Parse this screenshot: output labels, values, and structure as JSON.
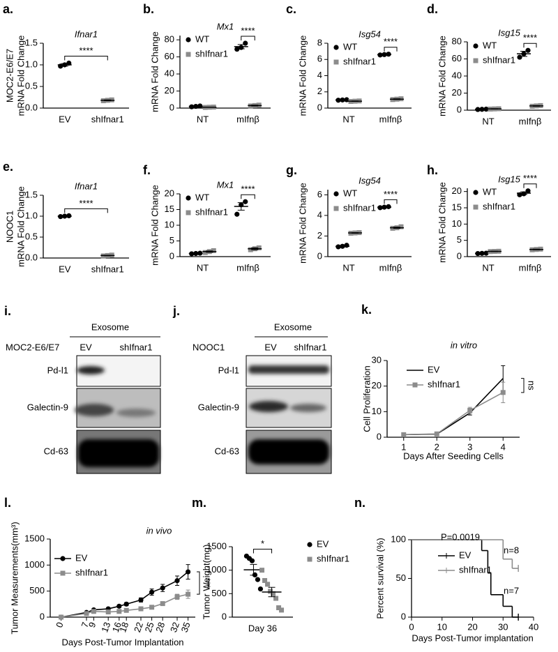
{
  "chart_data": [
    {
      "type": "dot",
      "panel_label": "a.",
      "title": "Ifnar1",
      "ylabel": [
        "MOC2-E6/E7",
        "mRNA Fold Change"
      ],
      "categories": [
        "EV",
        "shIfnar1"
      ],
      "colors": [
        "#000000",
        "#8c8c8c"
      ],
      "markers": [
        "circle",
        "square"
      ],
      "values": [
        1.0,
        0.18
      ],
      "errors": [
        0.03,
        0.01
      ],
      "points": [
        [
          0.97,
          1.0,
          1.04
        ],
        [
          0.17,
          0.18,
          0.19
        ]
      ],
      "ylim": [
        0,
        1.5
      ],
      "yticks": [
        {
          "value": 0,
          "label": "0.0"
        },
        0.5,
        {
          "value": 1,
          "label": "1.0"
        },
        1.5
      ],
      "annotation": "****"
    },
    {
      "type": "dot",
      "panel_label": "b.",
      "title": "Mx1",
      "ylabel": [
        "mRNA Fold Change"
      ],
      "categories": [
        "NT",
        "mIfnβ"
      ],
      "legend": "upper left",
      "series": [
        {
          "name": "WT",
          "color": "#000000",
          "marker": "circle",
          "values": [
            2,
            72
          ],
          "errors": [
            0.3,
            2.5
          ],
          "points": [
            [
              1.5,
              2,
              2.5
            ],
            [
              69,
              71,
              76
            ]
          ]
        },
        {
          "name": "shIfnar1",
          "color": "#8c8c8c",
          "marker": "square",
          "values": [
            1,
            3
          ],
          "errors": [
            0.2,
            0.5
          ],
          "points": [
            [
              0.8,
              1,
              1.2
            ],
            [
              2.5,
              3,
              3.5
            ]
          ]
        }
      ],
      "ylim": [
        0,
        85
      ],
      "yticks": [
        0,
        20,
        40,
        60,
        80
      ],
      "annotation": "****"
    },
    {
      "type": "dot",
      "panel_label": "c.",
      "title": "Isg54",
      "ylabel": [
        "mRNA Fold Change"
      ],
      "categories": [
        "NT",
        "mIfnβ"
      ],
      "legend": "upper left",
      "series": [
        {
          "name": "WT",
          "color": "#000000",
          "marker": "circle",
          "values": [
            1.0,
            6.6
          ],
          "errors": [
            0.03,
            0.04
          ],
          "points": [
            [
              0.97,
              1.0,
              1.03
            ],
            [
              6.55,
              6.6,
              6.65
            ]
          ]
        },
        {
          "name": "shIfnar1",
          "color": "#8c8c8c",
          "marker": "square",
          "values": [
            0.85,
            1.1
          ],
          "errors": [
            0.03,
            0.05
          ],
          "points": [
            [
              0.82,
              0.85,
              0.88
            ],
            [
              1.05,
              1.1,
              1.15
            ]
          ]
        }
      ],
      "ylim": [
        0,
        8
      ],
      "yticks": [
        0,
        2,
        4,
        6,
        8
      ],
      "annotation": "****"
    },
    {
      "type": "dot",
      "panel_label": "d.",
      "title": "Isg15",
      "ylabel": [
        "mRNA Fold Change"
      ],
      "categories": [
        "NT",
        "mIfnβ"
      ],
      "legend": "upper left",
      "series": [
        {
          "name": "WT",
          "color": "#000000",
          "marker": "circle",
          "values": [
            1,
            66
          ],
          "errors": [
            0.2,
            3
          ],
          "points": [
            [
              0.8,
              1,
              1.2
            ],
            [
              62,
              66,
              70
            ]
          ]
        },
        {
          "name": "shIfnar1",
          "color": "#8c8c8c",
          "marker": "square",
          "values": [
            1.5,
            5
          ],
          "errors": [
            0.2,
            0.4
          ],
          "points": [
            [
              1.3,
              1.5,
              1.7
            ],
            [
              4.6,
              5,
              5.4
            ]
          ]
        }
      ],
      "ylim": [
        0,
        80
      ],
      "yticks": [
        0,
        20,
        40,
        60,
        80
      ],
      "annotation": "****"
    },
    {
      "type": "dot",
      "panel_label": "e.",
      "title": "Ifnar1",
      "ylabel": [
        "NOOC1",
        "mRNA Fold Change"
      ],
      "categories": [
        "EV",
        "shIfnar1"
      ],
      "colors": [
        "#000000",
        "#8c8c8c"
      ],
      "markers": [
        "circle",
        "square"
      ],
      "values": [
        1.0,
        0.06
      ],
      "errors": [
        0.01,
        0.005
      ],
      "points": [
        [
          0.99,
          1.0,
          1.01
        ],
        [
          0.05,
          0.06,
          0.07
        ]
      ],
      "ylim": [
        0,
        1.5
      ],
      "yticks": [
        {
          "value": 0,
          "label": "0.0"
        },
        0.5,
        {
          "value": 1,
          "label": "1.0"
        },
        1.5
      ],
      "annotation": "****"
    },
    {
      "type": "dot",
      "panel_label": "f.",
      "title": "Mx1",
      "ylabel": [
        "mRNA Fold Change"
      ],
      "categories": [
        "NT",
        "mIfnβ"
      ],
      "legend": "upper left",
      "series": [
        {
          "name": "WT",
          "color": "#000000",
          "marker": "circle",
          "values": [
            1,
            16
          ],
          "errors": [
            0.1,
            1.2
          ],
          "points": [
            [
              0.9,
              1,
              1.1
            ],
            [
              13.5,
              16.5,
              17.5
            ]
          ]
        },
        {
          "name": "shIfnar1",
          "color": "#8c8c8c",
          "marker": "square",
          "values": [
            1.6,
            2.5
          ],
          "errors": [
            0.2,
            0.3
          ],
          "points": [
            [
              1.3,
              1.6,
              1.9
            ],
            [
              2.2,
              2.5,
              2.8
            ]
          ]
        }
      ],
      "ylim": [
        0,
        20
      ],
      "yticks": [
        0,
        5,
        10,
        15,
        20
      ],
      "annotation": "****"
    },
    {
      "type": "dot",
      "panel_label": "g.",
      "title": "Isg54",
      "ylabel": [
        "mRNA Fold Change"
      ],
      "categories": [
        "NT",
        "mIfnβ"
      ],
      "legend": "upper left",
      "series": [
        {
          "name": "WT",
          "color": "#000000",
          "marker": "circle",
          "values": [
            1.0,
            4.8
          ],
          "errors": [
            0.05,
            0.05
          ],
          "points": [
            [
              0.95,
              1.0,
              1.1
            ],
            [
              4.75,
              4.8,
              4.85
            ]
          ]
        },
        {
          "name": "shIfnar1",
          "color": "#8c8c8c",
          "marker": "square",
          "values": [
            2.3,
            2.8
          ],
          "errors": [
            0.03,
            0.06
          ],
          "points": [
            [
              2.27,
              2.3,
              2.33
            ],
            [
              2.75,
              2.8,
              2.9
            ]
          ]
        }
      ],
      "ylim": [
        0,
        6.5
      ],
      "yticks": [
        0,
        2,
        4,
        6
      ],
      "annotation": "****"
    },
    {
      "type": "dot",
      "panel_label": "h.",
      "title": "Isg15",
      "ylabel": [
        "mRNA Fold Change"
      ],
      "categories": [
        "NT",
        "mIfnβ"
      ],
      "legend": "upper left",
      "series": [
        {
          "name": "WT",
          "color": "#000000",
          "marker": "circle",
          "values": [
            1,
            19.5
          ],
          "errors": [
            0.05,
            0.4
          ],
          "points": [
            [
              0.95,
              1,
              1.05
            ],
            [
              19,
              19.3,
              20.2
            ]
          ]
        },
        {
          "name": "shIfnar1",
          "color": "#8c8c8c",
          "marker": "square",
          "values": [
            1.6,
            2.2
          ],
          "errors": [
            0.05,
            0.1
          ],
          "points": [
            [
              1.55,
              1.6,
              1.65
            ],
            [
              2.1,
              2.2,
              2.3
            ]
          ]
        }
      ],
      "ylim": [
        0,
        21
      ],
      "yticks": [
        0,
        5,
        10,
        15,
        20
      ],
      "annotation": "****"
    },
    {
      "type": "line",
      "panel_label": "k.",
      "title": "in vitro",
      "ylabel": [
        "Cell Proliferation"
      ],
      "xlabel": "Days After Seeding Cells",
      "x": [
        1,
        2,
        3,
        4
      ],
      "xlim": [
        0.5,
        4.5
      ],
      "xticks": [
        1,
        2,
        3,
        4
      ],
      "ylim": [
        0,
        30
      ],
      "yticks": [
        0,
        10,
        20,
        30
      ],
      "legend": "upper left",
      "series": [
        {
          "name": "EV",
          "color": "#000000",
          "marker": "none",
          "values": [
            1,
            1.2,
            9.5,
            23
          ],
          "errors": [
            0.2,
            0.3,
            0.8,
            5
          ]
        },
        {
          "name": "shIfnar1",
          "color": "#8c8c8c",
          "marker": "square",
          "values": [
            1,
            1.3,
            10.5,
            17.5
          ],
          "errors": [
            0.1,
            0.2,
            1.2,
            4
          ]
        }
      ],
      "annotation": "ns"
    },
    {
      "type": "line",
      "panel_label": "l.",
      "title": "in vivo",
      "ylabel": [
        "Tumor Measurements(mm³)"
      ],
      "xlabel": "Days Post-Tumor Implantation",
      "x": [
        0,
        7,
        9,
        13,
        16,
        18,
        22,
        25,
        28,
        32,
        35
      ],
      "xlim": [
        -3,
        37
      ],
      "xticks": [
        0,
        7,
        9,
        13,
        16,
        18,
        22,
        25,
        28,
        32,
        35
      ],
      "ylim": [
        0,
        1500
      ],
      "yticks": [
        0,
        500,
        1000,
        1500
      ],
      "legend": "upper left",
      "series": [
        {
          "name": "EV",
          "color": "#000000",
          "marker": "circle",
          "values": [
            0,
            90,
            140,
            160,
            210,
            250,
            330,
            480,
            560,
            700,
            870
          ],
          "errors": [
            0,
            15,
            20,
            20,
            25,
            30,
            40,
            60,
            70,
            90,
            140
          ]
        },
        {
          "name": "shIfnar1",
          "color": "#8c8c8c",
          "marker": "square",
          "values": [
            0,
            70,
            110,
            100,
            110,
            130,
            160,
            190,
            260,
            390,
            440
          ],
          "errors": [
            0,
            10,
            15,
            15,
            15,
            20,
            20,
            25,
            35,
            50,
            80
          ]
        }
      ],
      "annotation": "***"
    },
    {
      "type": "dot",
      "panel_label": "m.",
      "ylabel": [
        "Tumor Weight(mg)"
      ],
      "categories": [
        "Day 36"
      ],
      "legend": "right",
      "series": [
        {
          "name": "EV",
          "color": "#000000",
          "marker": "circle",
          "values": [
            1008
          ],
          "errors": [
            115
          ],
          "points": [
            [
              1300,
              1250,
              1200,
              900,
              800,
              600
            ]
          ]
        },
        {
          "name": "shIfnar1",
          "color": "#8c8c8c",
          "marker": "square",
          "values": [
            535
          ],
          "errors": [
            100
          ],
          "points": [
            [
              1000,
              780,
              700,
              550,
              500,
              400,
              200,
              150
            ]
          ]
        }
      ],
      "ylim": [
        0,
        1500
      ],
      "yticks": [
        0,
        500,
        1000,
        1500
      ],
      "annotation": "*"
    },
    {
      "type": "step",
      "panel_label": "n.",
      "ylabel": [
        "Percent survival (%)"
      ],
      "xlabel": "Days Post-Tumor implantation",
      "xlim": [
        0,
        40
      ],
      "xticks": [
        0,
        10,
        20,
        30,
        40
      ],
      "ylim": [
        0,
        100
      ],
      "yticks": [
        0,
        50,
        100
      ],
      "legend": "upper left",
      "series": [
        {
          "name": "EV",
          "color": "#000000",
          "x": [
            0,
            23,
            25,
            26,
            30,
            33,
            35
          ],
          "values": [
            100,
            86,
            57,
            29,
            14,
            0,
            0
          ]
        },
        {
          "name": "shIfnar1",
          "color": "#8c8c8c",
          "x": [
            0,
            30,
            33,
            35
          ],
          "values": [
            100,
            75,
            63,
            63
          ]
        }
      ],
      "annotations": [
        "P=0.0019",
        "n=8",
        "n=7"
      ]
    }
  ],
  "blots": [
    {
      "panel_label": "i.",
      "header": "Exosome",
      "cell_line": "MOC2-E6/E7",
      "lanes": [
        "EV",
        "shIfnar1"
      ],
      "rows": [
        "Pd-l1",
        "Galectin-9",
        "Cd-63"
      ]
    },
    {
      "panel_label": "j.",
      "header": "Exosome",
      "cell_line": "NOOC1",
      "lanes": [
        "EV",
        "shIfnar1"
      ],
      "rows": [
        "Pd-l1",
        "Galectin-9",
        "Cd-63"
      ]
    }
  ]
}
